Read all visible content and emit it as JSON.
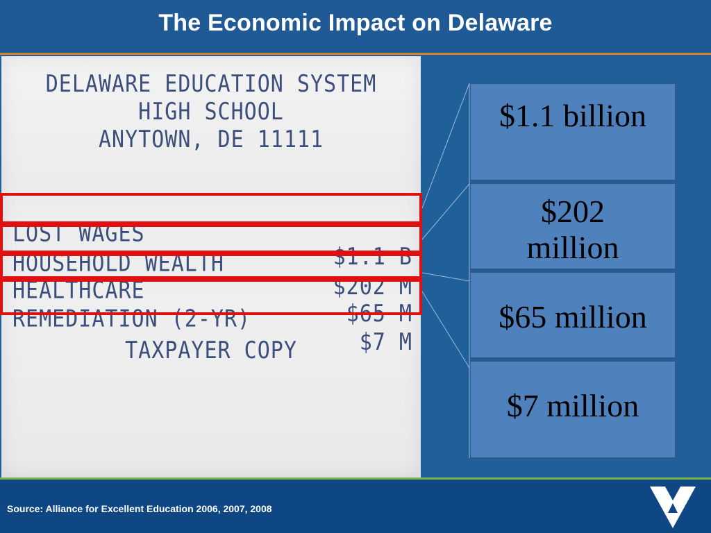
{
  "slide": {
    "title": "The Economic Impact on Delaware",
    "source": "Source:  Alliance for Excellent Education 2006, 2007, 2008"
  },
  "receipt": {
    "header": [
      "DELAWARE EDUCATION SYSTEM",
      "HIGH SCHOOL",
      "ANYTOWN, DE 11111"
    ],
    "items": [
      {
        "label": "LOST WAGES",
        "value": "$1.1 B"
      },
      {
        "label": "HOUSEHOLD WEALTH",
        "value": "$202 M"
      },
      {
        "label": "HEALTHCARE",
        "value": "$65 M"
      },
      {
        "label": "REMEDIATION (2-YR)",
        "value": "$7 M"
      }
    ],
    "footer": "TAXPAYER COPY"
  },
  "boxes": [
    {
      "line1": "$1.1 billion",
      "line2": ""
    },
    {
      "line1": "$202",
      "line2": "million"
    },
    {
      "line1": "$65 million",
      "line2": ""
    },
    {
      "line1": "$7 million",
      "line2": ""
    }
  ],
  "colors": {
    "background": "#1f5f9a",
    "title_rule": "#d9822b",
    "footer_rule": "#7ab648",
    "footer_bg": "#0f4784",
    "box_fill": "#4f81bd",
    "highlight": "#e01010",
    "receipt_text": "#3b4f7a"
  },
  "icons": {
    "logo": "chevron-v-logo-icon"
  }
}
